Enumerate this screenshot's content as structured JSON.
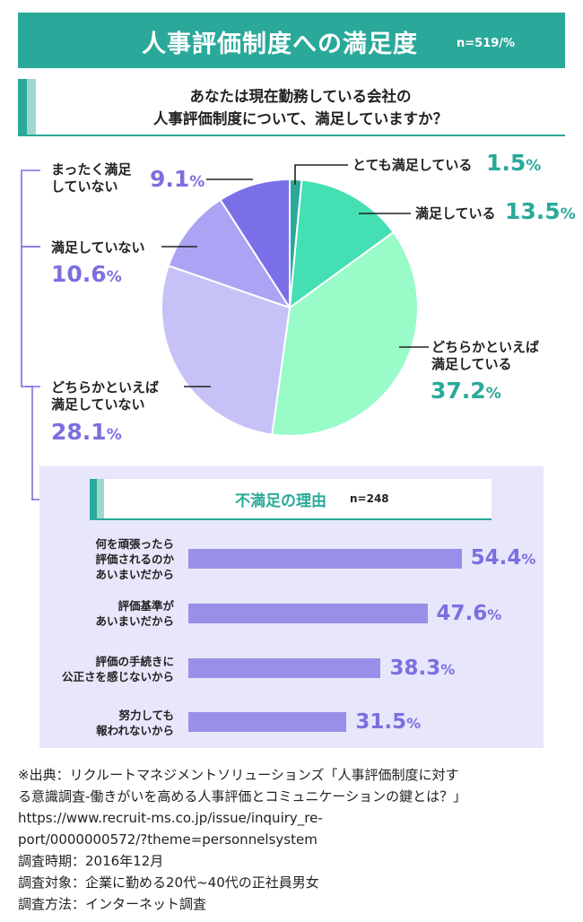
{
  "title": {
    "text": "人事評価制度への満足度",
    "n": "n=519/%"
  },
  "question": {
    "line1": "あなたは現在勤務している会社の",
    "line2": "人事評価制度について、満足していますか？"
  },
  "chart_data": [
    {
      "type": "pie",
      "title": "人事評価制度への満足度",
      "categories": [
        "とても満足している",
        "満足している",
        "どちらかといえば満足している",
        "どちらかといえば満足していない",
        "満足していない",
        "まったく満足していない"
      ],
      "values": [
        1.5,
        13.5,
        37.2,
        28.1,
        10.6,
        9.1
      ],
      "colors": [
        "#2aa99a",
        "#44dfb2",
        "#98fbc8",
        "#c6c2f8",
        "#aba4f4",
        "#7b6fe8"
      ],
      "unit": "%"
    },
    {
      "type": "bar",
      "orientation": "horizontal",
      "title": "不満足の理由",
      "categories": [
        "何を頑張ったら評価されるのかあいまいだから",
        "評価基準があいまいだから",
        "評価の手続きに公正さを感じないから",
        "努力しても報われないから"
      ],
      "values": [
        54.4,
        47.6,
        38.3,
        31.5
      ],
      "unit": "%"
    }
  ],
  "pie_labels": {
    "very_satisfied": {
      "label": "とても満足している",
      "pct_num": "1.5",
      "pct_sign": "%"
    },
    "satisfied": {
      "label": "満足している",
      "pct_num": "13.5",
      "pct_sign": "%"
    },
    "somewhat_satisfied": {
      "line1": "どちらかといえば",
      "line2": "満足している",
      "pct_num": "37.2",
      "pct_sign": "%"
    },
    "somewhat_dissatisfied": {
      "line1": "どちらかといえば",
      "line2": "満足していない",
      "pct_num": "28.1",
      "pct_sign": "%"
    },
    "dissatisfied": {
      "label": "満足していない",
      "pct_num": "10.6",
      "pct_sign": "%"
    },
    "not_at_all": {
      "line1": "まったく満足",
      "line2": "していない",
      "pct_num": "9.1",
      "pct_sign": "%"
    }
  },
  "reasons": {
    "title": "不満足の理由",
    "n": "n=248",
    "items": [
      {
        "lines": [
          "何を頑張ったら",
          "評価されるのか",
          "あいまいだから"
        ],
        "pct_num": "54.4",
        "pct_sign": "%"
      },
      {
        "lines": [
          "評価基準が",
          "あいまいだから"
        ],
        "pct_num": "47.6",
        "pct_sign": "%"
      },
      {
        "lines": [
          "評価の手続きに",
          "公正さを感じないから"
        ],
        "pct_num": "38.3",
        "pct_sign": "%"
      },
      {
        "lines": [
          "努力しても",
          "報われないから"
        ],
        "pct_num": "31.5",
        "pct_sign": "%"
      }
    ]
  },
  "source": {
    "line1": "※出典：リクルートマネジメントソリューションズ「人事評価制度に対す",
    "line2": "る意識調査-働きがいを高める人事評価とコミュニケーションの鍵とは？」",
    "line3": "https://www.recruit-ms.co.jp/issue/inquiry_re-",
    "line4": "port/0000000572/?theme=personnelsystem",
    "line5": "調査時期：2016年12月",
    "line6": "調査対象：企業に勤める20代~40代の正社員男女",
    "line7": "調査方法：インターネット調査"
  }
}
